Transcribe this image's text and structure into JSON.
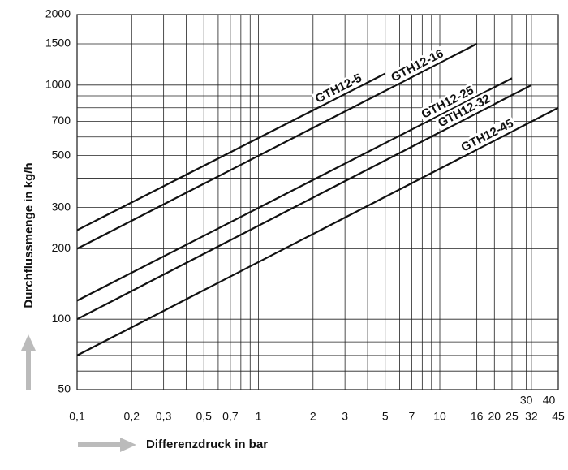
{
  "chart_data": {
    "type": "line",
    "x_label": "Differenzdruck in bar",
    "y_label": "Durchflussmenge in kg/h",
    "xscale": "log",
    "yscale": "log",
    "xlim": [
      0.1,
      45
    ],
    "ylim": [
      50,
      2000
    ],
    "xticks": [
      {
        "value": 0.1,
        "label": "0,1"
      },
      {
        "value": 0.2,
        "label": "0,2"
      },
      {
        "value": 0.3,
        "label": "0,3"
      },
      {
        "value": 0.5,
        "label": "0,5"
      },
      {
        "value": 0.7,
        "label": "0,7"
      },
      1,
      2,
      3,
      5,
      7,
      10,
      16,
      20,
      25,
      32,
      45
    ],
    "xticks_upper": [
      30,
      40
    ],
    "xgrid_minor": [
      0.4,
      0.6,
      0.8,
      0.9,
      4,
      6,
      8,
      9
    ],
    "yticks": [
      50,
      100,
      200,
      300,
      500,
      700,
      1000,
      1500,
      2000
    ],
    "ygrid_minor": [
      60,
      70,
      80,
      90,
      400,
      600,
      800,
      900
    ],
    "grid": true,
    "series": [
      {
        "name": "GTH12-5",
        "color": "#111111",
        "x": [
          0.1,
          5
        ],
        "values": [
          240,
          1120
        ]
      },
      {
        "name": "GTH12-16",
        "color": "#111111",
        "x": [
          0.1,
          16
        ],
        "values": [
          200,
          1500
        ]
      },
      {
        "name": "GTH12-25",
        "color": "#111111",
        "x": [
          0.1,
          25
        ],
        "values": [
          120,
          1070
        ]
      },
      {
        "name": "GTH12-32",
        "color": "#111111",
        "x": [
          0.1,
          32
        ],
        "values": [
          100,
          1000
        ]
      },
      {
        "name": "GTH12-45",
        "color": "#111111",
        "x": [
          0.1,
          45
        ],
        "values": [
          70,
          800
        ]
      }
    ]
  }
}
